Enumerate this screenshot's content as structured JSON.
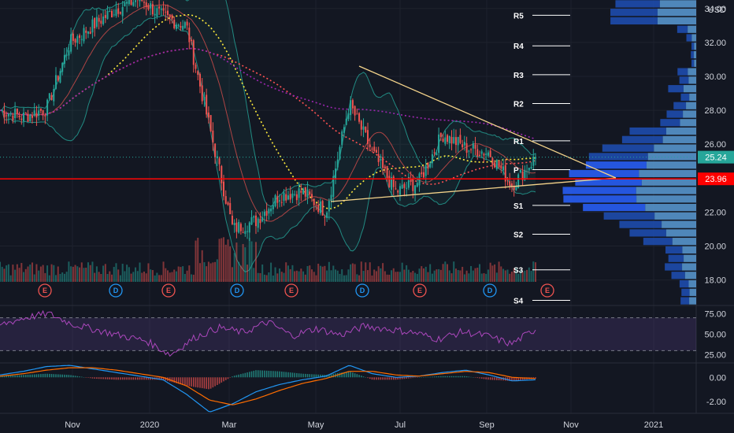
{
  "chart_data": [
    {
      "type": "candlestick",
      "title": "",
      "currency": "USD",
      "ylim": [
        16.5,
        34.5
      ],
      "y_ticks": [
        "18.00",
        "20.00",
        "22.00",
        "24.00",
        "26.00",
        "28.00",
        "30.00",
        "32.00",
        "34.00"
      ],
      "x_ticks": [
        "Nov",
        "2020",
        "Mar",
        "May",
        "Jul",
        "Sep",
        "Nov",
        "2021"
      ],
      "last_price": "25.24",
      "horizontal_line_price": "23.96",
      "price_path": [
        {
          "x": "Sep 2019",
          "y": 28.0
        },
        {
          "x": "Oct 2019",
          "y": 27.6
        },
        {
          "x": "Oct 2019",
          "y": 28.1
        },
        {
          "x": "Nov 2019",
          "y": 32.0
        },
        {
          "x": "Dec 2019",
          "y": 33.0
        },
        {
          "x": "Dec 2019",
          "y": 34.0
        },
        {
          "x": "Jan 2020",
          "y": 34.6
        },
        {
          "x": "Feb 2020",
          "y": 33.5
        },
        {
          "x": "Feb 2020",
          "y": 33.0
        },
        {
          "x": "Mar 2020",
          "y": 27.0
        },
        {
          "x": "Mar 2020",
          "y": 21.0
        },
        {
          "x": "Apr 2020",
          "y": 21.5
        },
        {
          "x": "Apr 2020",
          "y": 23.0
        },
        {
          "x": "May 2020",
          "y": 23.2
        },
        {
          "x": "May 2020",
          "y": 22.0
        },
        {
          "x": "Jun 2020",
          "y": 28.4
        },
        {
          "x": "Jun 2020",
          "y": 25.5
        },
        {
          "x": "Jul 2020",
          "y": 23.2
        },
        {
          "x": "Jul 2020",
          "y": 23.8
        },
        {
          "x": "Aug 2020",
          "y": 26.6
        },
        {
          "x": "Aug 2020",
          "y": 25.8
        },
        {
          "x": "Sep 2020",
          "y": 25.5
        },
        {
          "x": "Sep 2020",
          "y": 23.6
        },
        {
          "x": "Oct 2020",
          "y": 25.2
        }
      ],
      "pivot_levels": [
        {
          "label": "R5",
          "value": 33.6
        },
        {
          "label": "R4",
          "value": 31.8
        },
        {
          "label": "R3",
          "value": 30.1
        },
        {
          "label": "R2",
          "value": 28.4
        },
        {
          "label": "R1",
          "value": 26.2
        },
        {
          "label": "P",
          "value": 24.5
        },
        {
          "label": "S1",
          "value": 22.4
        },
        {
          "label": "S2",
          "value": 20.7
        },
        {
          "label": "S3",
          "value": 18.6
        },
        {
          "label": "S4",
          "value": 16.8
        }
      ],
      "event_badges": [
        "E",
        "D",
        "E",
        "D",
        "E",
        "D",
        "E",
        "D",
        "E"
      ],
      "colors": {
        "up": "#26a69a",
        "down": "#ef5350",
        "price_line": "#26a69a",
        "horizontal_line": "#ff0000",
        "triangle": "#f5d48b",
        "volume_profile": "#2962ff"
      }
    },
    {
      "type": "line",
      "indicator": "RSI",
      "ylim": [
        15,
        85
      ],
      "y_ticks": [
        "75.00",
        "50.00",
        "25.00"
      ],
      "bands": [
        70,
        30
      ],
      "values": [
        61,
        70,
        75,
        62,
        55,
        48,
        42,
        25,
        46,
        58,
        52,
        65,
        48,
        57,
        49,
        60,
        56,
        52,
        44,
        53,
        48,
        38,
        56
      ],
      "colors": {
        "line": "#ab47bc",
        "band_fill": "#7e57c2"
      }
    },
    {
      "type": "line",
      "indicator": "MACD",
      "ylim": [
        -3.0,
        1.2
      ],
      "y_ticks": [
        "0.00",
        "-2.00"
      ],
      "macd": [
        0.2,
        0.5,
        0.9,
        1.0,
        0.7,
        0.4,
        0.1,
        -0.2,
        -1.4,
        -2.9,
        -2.2,
        -1.2,
        -0.6,
        -0.2,
        0.1,
        1.0,
        0.3,
        0.0,
        0.1,
        0.4,
        0.6,
        0.2,
        -0.3,
        -0.2
      ],
      "signal": [
        0.1,
        0.3,
        0.6,
        0.8,
        0.8,
        0.6,
        0.3,
        0.0,
        -0.7,
        -1.9,
        -2.3,
        -1.8,
        -1.1,
        -0.5,
        -0.1,
        0.5,
        0.5,
        0.2,
        0.1,
        0.3,
        0.5,
        0.4,
        0.0,
        -0.1
      ],
      "colors": {
        "macd": "#2196f3",
        "signal": "#ff6d00"
      }
    }
  ]
}
